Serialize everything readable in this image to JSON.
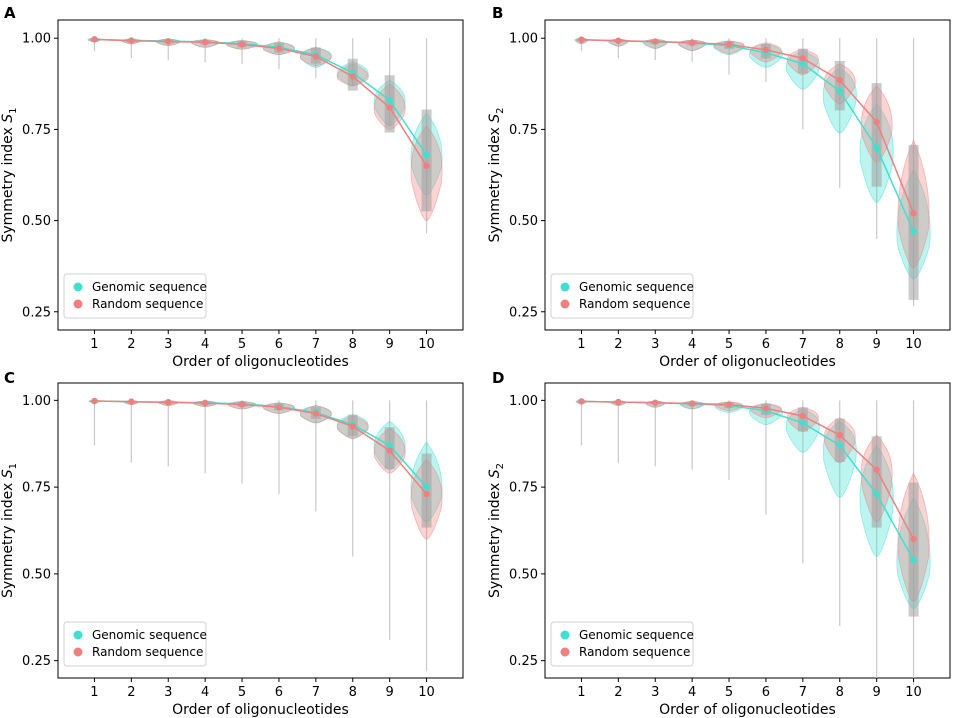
{
  "colors": {
    "genomic": "#40E0D0",
    "random": "#F08080",
    "whisker": "#c8c8c8",
    "box": "#a0a0a0"
  },
  "chart_data": [
    {
      "panel": "A",
      "type": "violin",
      "xlabel": "Order of oligonucleotides",
      "ylabel_main": "Symmetry index ",
      "ylabel_var": "S",
      "ylabel_sub": "1",
      "x": [
        1,
        2,
        3,
        4,
        5,
        6,
        7,
        8,
        9,
        10
      ],
      "ylim": [
        0.2,
        1.05
      ],
      "yticks": [
        0.25,
        0.5,
        0.75,
        1.0
      ],
      "ytick_labels": [
        "0.25",
        "0.50",
        "0.75",
        "1.00"
      ],
      "legend": [
        "Genomic sequence",
        "Random sequence"
      ],
      "legend_position": "lower-left",
      "series": [
        {
          "name": "Genomic sequence",
          "median": [
            0.997,
            0.994,
            0.992,
            0.99,
            0.985,
            0.975,
            0.955,
            0.905,
            0.83,
            0.68
          ],
          "width": [
            0.12,
            0.18,
            0.22,
            0.25,
            0.28,
            0.28,
            0.28,
            0.28,
            0.28,
            0.28
          ],
          "min": [
            0.99,
            0.985,
            0.98,
            0.975,
            0.97,
            0.955,
            0.92,
            0.87,
            0.76,
            0.57
          ],
          "max": [
            1.0,
            0.998,
            0.998,
            0.996,
            0.994,
            0.99,
            0.975,
            0.935,
            0.885,
            0.795
          ]
        },
        {
          "name": "Random sequence",
          "median": [
            0.997,
            0.993,
            0.991,
            0.989,
            0.983,
            0.972,
            0.95,
            0.895,
            0.81,
            0.65
          ],
          "width": [
            0.1,
            0.16,
            0.2,
            0.24,
            0.27,
            0.28,
            0.28,
            0.28,
            0.28,
            0.28
          ],
          "min": [
            0.99,
            0.985,
            0.98,
            0.975,
            0.97,
            0.955,
            0.925,
            0.87,
            0.75,
            0.5
          ],
          "max": [
            1.0,
            0.998,
            0.998,
            0.996,
            0.994,
            0.99,
            0.975,
            0.93,
            0.875,
            0.76
          ]
        }
      ],
      "whisker_min": [
        0.965,
        0.945,
        0.94,
        0.935,
        0.93,
        0.915,
        0.89,
        0.87,
        0.76,
        0.465
      ]
    },
    {
      "panel": "B",
      "type": "violin",
      "xlabel": "Order of oligonucleotides",
      "ylabel_main": "Symmetry index ",
      "ylabel_var": "S",
      "ylabel_sub": "2",
      "x": [
        1,
        2,
        3,
        4,
        5,
        6,
        7,
        8,
        9,
        10
      ],
      "ylim": [
        0.2,
        1.05
      ],
      "yticks": [
        0.25,
        0.5,
        0.75,
        1.0
      ],
      "ytick_labels": [
        "0.25",
        "0.50",
        "0.75",
        "1.00"
      ],
      "legend": [
        "Genomic sequence",
        "Random sequence"
      ],
      "legend_position": "lower-left",
      "series": [
        {
          "name": "Genomic sequence",
          "median": [
            0.996,
            0.993,
            0.99,
            0.987,
            0.98,
            0.96,
            0.93,
            0.855,
            0.7,
            0.47
          ],
          "width": [
            0.12,
            0.18,
            0.22,
            0.25,
            0.28,
            0.3,
            0.3,
            0.3,
            0.3,
            0.3
          ],
          "min": [
            0.985,
            0.978,
            0.972,
            0.966,
            0.955,
            0.92,
            0.86,
            0.74,
            0.55,
            0.34
          ],
          "max": [
            1.0,
            0.998,
            0.997,
            0.995,
            0.992,
            0.985,
            0.965,
            0.92,
            0.82,
            0.64
          ]
        },
        {
          "name": "Random sequence",
          "median": [
            0.996,
            0.993,
            0.991,
            0.988,
            0.983,
            0.968,
            0.945,
            0.885,
            0.77,
            0.52
          ],
          "width": [
            0.1,
            0.16,
            0.2,
            0.24,
            0.27,
            0.28,
            0.28,
            0.28,
            0.28,
            0.28
          ],
          "min": [
            0.985,
            0.978,
            0.972,
            0.966,
            0.958,
            0.935,
            0.9,
            0.82,
            0.66,
            0.37
          ],
          "max": [
            1.0,
            0.998,
            0.997,
            0.995,
            0.993,
            0.988,
            0.97,
            0.93,
            0.87,
            0.72
          ]
        }
      ],
      "whisker_min": [
        0.965,
        0.945,
        0.94,
        0.935,
        0.9,
        0.88,
        0.75,
        0.59,
        0.45,
        0.265
      ]
    },
    {
      "panel": "C",
      "type": "violin",
      "xlabel": "Order of oligonucleotides",
      "ylabel_main": "Symmetry index ",
      "ylabel_var": "S",
      "ylabel_sub": "1",
      "x": [
        1,
        2,
        3,
        4,
        5,
        6,
        7,
        8,
        9,
        10
      ],
      "ylim": [
        0.2,
        1.05
      ],
      "yticks": [
        0.25,
        0.5,
        0.75,
        1.0
      ],
      "ytick_labels": [
        "0.25",
        "0.50",
        "0.75",
        "1.00"
      ],
      "legend": [
        "Genomic sequence",
        "Random sequence"
      ],
      "legend_position": "lower-left",
      "series": [
        {
          "name": "Genomic sequence",
          "median": [
            0.998,
            0.996,
            0.995,
            0.993,
            0.99,
            0.982,
            0.965,
            0.93,
            0.87,
            0.75
          ],
          "width": [
            0.1,
            0.14,
            0.18,
            0.22,
            0.25,
            0.28,
            0.28,
            0.28,
            0.28,
            0.28
          ],
          "min": [
            0.992,
            0.988,
            0.985,
            0.982,
            0.975,
            0.962,
            0.935,
            0.89,
            0.8,
            0.65
          ],
          "max": [
            1.0,
            0.999,
            0.999,
            0.998,
            0.997,
            0.993,
            0.985,
            0.96,
            0.94,
            0.88
          ]
        },
        {
          "name": "Random sequence",
          "median": [
            0.998,
            0.996,
            0.994,
            0.992,
            0.988,
            0.98,
            0.962,
            0.925,
            0.855,
            0.73
          ],
          "width": [
            0.08,
            0.12,
            0.16,
            0.2,
            0.24,
            0.28,
            0.28,
            0.28,
            0.28,
            0.28
          ],
          "min": [
            0.992,
            0.988,
            0.985,
            0.982,
            0.975,
            0.962,
            0.935,
            0.89,
            0.79,
            0.6
          ],
          "max": [
            1.0,
            0.999,
            0.999,
            0.998,
            0.997,
            0.993,
            0.985,
            0.955,
            0.92,
            0.83
          ]
        }
      ],
      "whisker_min": [
        0.87,
        0.82,
        0.81,
        0.79,
        0.76,
        0.73,
        0.68,
        0.55,
        0.31,
        0.22
      ]
    },
    {
      "panel": "D",
      "type": "violin",
      "xlabel": "Order of oligonucleotides",
      "ylabel_main": "Symmetry index ",
      "ylabel_var": "S",
      "ylabel_sub": "2",
      "x": [
        1,
        2,
        3,
        4,
        5,
        6,
        7,
        8,
        9,
        10
      ],
      "ylim": [
        0.2,
        1.05
      ],
      "yticks": [
        0.25,
        0.5,
        0.75,
        1.0
      ],
      "ytick_labels": [
        "0.25",
        "0.50",
        "0.75",
        "1.00"
      ],
      "legend": [
        "Genomic sequence",
        "Random sequence"
      ],
      "legend_position": "lower-left",
      "series": [
        {
          "name": "Genomic sequence",
          "median": [
            0.997,
            0.995,
            0.993,
            0.99,
            0.985,
            0.97,
            0.935,
            0.87,
            0.73,
            0.54
          ],
          "width": [
            0.1,
            0.14,
            0.18,
            0.22,
            0.26,
            0.3,
            0.3,
            0.3,
            0.3,
            0.3
          ],
          "min": [
            0.99,
            0.985,
            0.98,
            0.975,
            0.965,
            0.93,
            0.85,
            0.72,
            0.55,
            0.4
          ],
          "max": [
            1.0,
            0.999,
            0.998,
            0.997,
            0.995,
            0.99,
            0.975,
            0.94,
            0.87,
            0.72
          ]
        },
        {
          "name": "Random sequence",
          "median": [
            0.997,
            0.995,
            0.993,
            0.991,
            0.988,
            0.977,
            0.955,
            0.9,
            0.8,
            0.6
          ],
          "width": [
            0.08,
            0.12,
            0.16,
            0.2,
            0.24,
            0.28,
            0.28,
            0.28,
            0.28,
            0.28
          ],
          "min": [
            0.99,
            0.985,
            0.98,
            0.976,
            0.97,
            0.95,
            0.91,
            0.82,
            0.65,
            0.42
          ],
          "max": [
            1.0,
            0.999,
            0.998,
            0.997,
            0.996,
            0.992,
            0.98,
            0.95,
            0.9,
            0.79
          ]
        }
      ],
      "whisker_min": [
        0.87,
        0.82,
        0.81,
        0.8,
        0.77,
        0.67,
        0.53,
        0.35,
        0.2,
        0.18
      ]
    }
  ]
}
